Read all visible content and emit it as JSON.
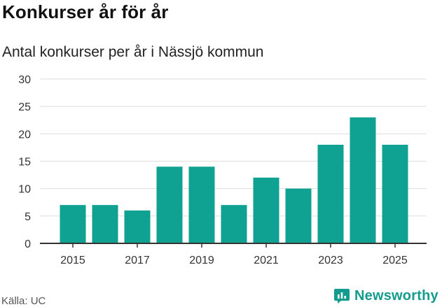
{
  "title": "Konkurser år för år",
  "subtitle": "Antal konkurser per år i Nässjö kommun",
  "source": "Källa: UC",
  "brand": {
    "name": "Newsworthy",
    "icon": "newsworthy-logo-icon"
  },
  "colors": {
    "bar": "#0fa192",
    "grid": "#dddddd",
    "axis": "#333333",
    "brand": "#139c8e"
  },
  "chart_data": {
    "type": "bar",
    "title": "Konkurser år för år",
    "subtitle": "Antal konkurser per år i Nässjö kommun",
    "xlabel": "",
    "ylabel": "",
    "categories": [
      "2015",
      "2016",
      "2017",
      "2018",
      "2019",
      "2020",
      "2021",
      "2022",
      "2023",
      "2024",
      "2025"
    ],
    "values": [
      7,
      7,
      6,
      14,
      14,
      7,
      12,
      10,
      18,
      23,
      18
    ],
    "x_tick_labels": [
      "2015",
      "2017",
      "2019",
      "2021",
      "2023",
      "2025"
    ],
    "y_tick_labels": [
      "0",
      "5",
      "10",
      "15",
      "20",
      "25",
      "30"
    ],
    "ylim": [
      0,
      30
    ],
    "grid": true,
    "legend": "none"
  }
}
